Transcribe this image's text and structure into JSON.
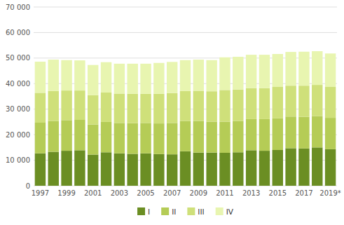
{
  "chart_data": {
    "type": "bar",
    "stacked": true,
    "grid": true,
    "legend": "bottom",
    "categories": [
      "1997",
      null,
      "1999",
      null,
      "2001",
      null,
      "2003",
      null,
      "2005",
      null,
      "2007",
      null,
      "2009",
      null,
      "2011",
      null,
      "2013",
      null,
      "2015",
      null,
      "2017",
      null,
      "2019*"
    ],
    "series": [
      {
        "name": "I",
        "color": "#6b8e23",
        "values": [
          12700,
          13300,
          13700,
          13900,
          12200,
          13100,
          12700,
          12500,
          12700,
          12400,
          12300,
          13500,
          13000,
          13000,
          12900,
          13100,
          13900,
          13700,
          14000,
          14700,
          14600,
          15000,
          14300
        ]
      },
      {
        "name": "II",
        "color": "#b5cc56",
        "values": [
          12000,
          12100,
          12000,
          11900,
          11800,
          11900,
          11900,
          12000,
          11900,
          12000,
          12300,
          11900,
          12400,
          12100,
          12200,
          12300,
          12200,
          12400,
          12400,
          12400,
          12400,
          12300,
          12300
        ]
      },
      {
        "name": "III",
        "color": "#cfe07a",
        "values": [
          11700,
          11700,
          11600,
          11500,
          11500,
          11500,
          11500,
          11500,
          11400,
          11600,
          11700,
          11700,
          11800,
          11900,
          12400,
          12300,
          12100,
          12100,
          12300,
          12100,
          12200,
          12200,
          12100
        ]
      },
      {
        "name": "IV",
        "color": "#e8f5b0",
        "values": [
          12200,
          12300,
          11900,
          11800,
          11800,
          11900,
          11700,
          11800,
          11800,
          12100,
          12200,
          12100,
          12200,
          12200,
          12800,
          12800,
          13100,
          13100,
          12900,
          13200,
          13300,
          13200,
          13100
        ]
      }
    ],
    "ylim": [
      0,
      70000
    ],
    "yticks": [
      0,
      {
        "value": 10000,
        "label": "10 000"
      },
      {
        "value": 20000,
        "label": "20 000"
      },
      {
        "value": 30000,
        "label": "30 000"
      },
      {
        "value": 40000,
        "label": "40 000"
      },
      {
        "value": 50000,
        "label": "50 000"
      },
      {
        "value": 60000,
        "label": "60 000"
      },
      {
        "value": 70000,
        "label": "70 000"
      }
    ]
  }
}
